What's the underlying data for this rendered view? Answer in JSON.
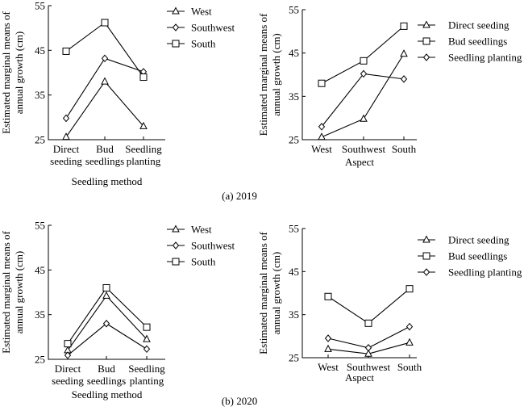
{
  "captions": [
    "(a) 2019",
    "(b) 2020"
  ],
  "chart_data": [
    {
      "type": "line",
      "xlabel": "Seedling method",
      "ylabel": "Estimated marginal means of annual growth (cm)",
      "categories": [
        "Direct seeding",
        "Bud seedlings",
        "Seedling planting"
      ],
      "category_lines": [
        [
          "Direct",
          "seeding"
        ],
        [
          "Bud",
          "seedlings"
        ],
        [
          "Seedling",
          "planting"
        ]
      ],
      "ylim": [
        25,
        55
      ],
      "yticks": [
        25,
        35,
        45,
        55
      ],
      "legend_position": "top-right",
      "series": [
        {
          "name": "West",
          "marker": "triangle",
          "values": [
            25.6,
            38.0,
            28.0
          ]
        },
        {
          "name": "Southwest",
          "marker": "diamond",
          "values": [
            29.8,
            43.2,
            40.2
          ]
        },
        {
          "name": "South",
          "marker": "square",
          "values": [
            44.8,
            51.2,
            39.0
          ]
        }
      ]
    },
    {
      "type": "line",
      "xlabel": "Aspect",
      "ylabel": "Estimated marginal means of annual growth (cm)",
      "categories": [
        "West",
        "Southwest",
        "South"
      ],
      "category_lines": [
        [
          "West"
        ],
        [
          "Southwest"
        ],
        [
          "South"
        ]
      ],
      "ylim": [
        25,
        55
      ],
      "yticks": [
        25,
        35,
        45,
        55
      ],
      "legend_position": "top-right",
      "series": [
        {
          "name": "Direct seeding",
          "marker": "triangle",
          "values": [
            25.6,
            29.8,
            44.8
          ]
        },
        {
          "name": "Bud seedlings",
          "marker": "square",
          "values": [
            38.0,
            43.2,
            51.2
          ]
        },
        {
          "name": "Seedling planting",
          "marker": "diamond",
          "values": [
            28.0,
            40.2,
            39.0
          ]
        }
      ]
    },
    {
      "type": "line",
      "xlabel": "Seedling method",
      "ylabel": "Estimated marginal means of annual growth (cm)",
      "categories": [
        "Direct seeding",
        "Bud seedlings",
        "Seedling planting"
      ],
      "category_lines": [
        [
          "Direct",
          "seeding"
        ],
        [
          "Bud",
          "seedlings"
        ],
        [
          "Seedling",
          "planting"
        ]
      ],
      "ylim": [
        25,
        55
      ],
      "yticks": [
        25,
        35,
        45,
        55
      ],
      "legend_position": "top-right",
      "series": [
        {
          "name": "West",
          "marker": "triangle",
          "values": [
            27.0,
            39.2,
            29.5
          ]
        },
        {
          "name": "Southwest",
          "marker": "diamond",
          "values": [
            25.9,
            33.0,
            27.3
          ]
        },
        {
          "name": "South",
          "marker": "square",
          "values": [
            28.5,
            41.0,
            32.2
          ]
        }
      ]
    },
    {
      "type": "line",
      "xlabel": "Aspect",
      "ylabel": "Estimated marginal means of annual growth (cm)",
      "categories": [
        "West",
        "Southwest",
        "South"
      ],
      "category_lines": [
        [
          "West"
        ],
        [
          "Southwest"
        ],
        [
          "South"
        ]
      ],
      "ylim": [
        25,
        55
      ],
      "yticks": [
        25,
        35,
        45,
        55
      ],
      "legend_position": "top-right",
      "series": [
        {
          "name": "Direct seeding",
          "marker": "triangle",
          "values": [
            27.0,
            25.9,
            28.5
          ]
        },
        {
          "name": "Bud seedlings",
          "marker": "square",
          "values": [
            39.2,
            33.0,
            41.0
          ]
        },
        {
          "name": "Seedling planting",
          "marker": "diamond",
          "values": [
            29.5,
            27.3,
            32.2
          ]
        }
      ]
    }
  ]
}
